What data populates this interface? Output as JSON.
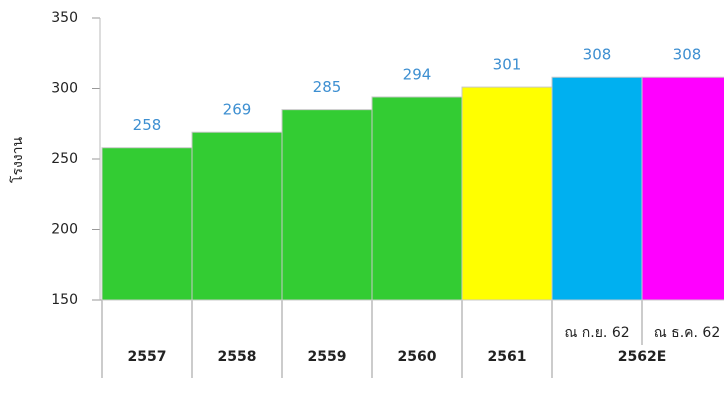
{
  "chart_data": {
    "type": "bar",
    "y_label": "โรงงาน",
    "ylim": [
      150,
      350
    ],
    "yticks": [
      150,
      200,
      250,
      300,
      350
    ],
    "groups": [
      {
        "label": "2557",
        "bars": [
          {
            "value": 258,
            "color": "#33cc33"
          }
        ]
      },
      {
        "label": "2558",
        "bars": [
          {
            "value": 269,
            "color": "#33cc33"
          }
        ]
      },
      {
        "label": "2559",
        "bars": [
          {
            "value": 285,
            "color": "#33cc33"
          }
        ]
      },
      {
        "label": "2560",
        "bars": [
          {
            "value": 294,
            "color": "#33cc33"
          }
        ]
      },
      {
        "label": "2561",
        "bars": [
          {
            "value": 301,
            "color": "#ffff00"
          }
        ]
      },
      {
        "label": "2562E",
        "bars": [
          {
            "label": "ณ ก.ย. 62",
            "value": 308,
            "color": "#00b0f0"
          },
          {
            "label": "ณ ธ.ค. 62",
            "value": 308,
            "color": "#ff00ff"
          }
        ]
      }
    ]
  }
}
